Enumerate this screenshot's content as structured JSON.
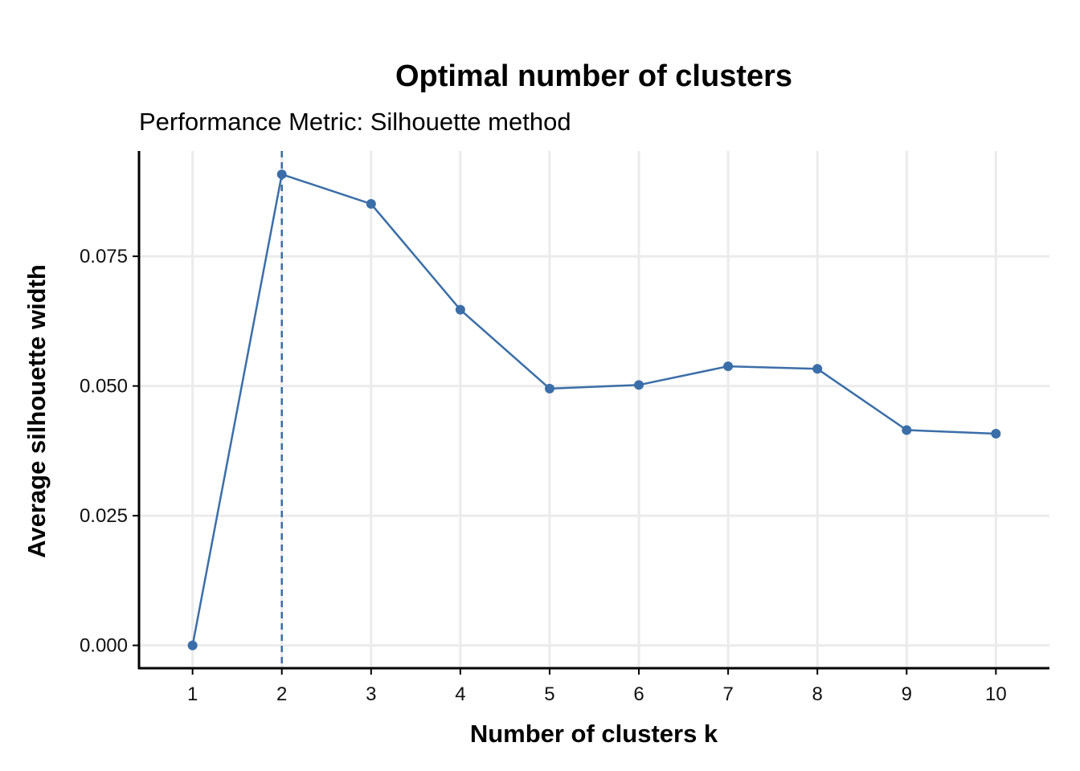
{
  "chart_data": {
    "type": "line",
    "title": "Optimal number of clusters",
    "subtitle": "Performance Metric: Silhouette method",
    "xlabel": "Number of clusters k",
    "ylabel": "Average silhouette width",
    "x": [
      1,
      2,
      3,
      4,
      5,
      6,
      7,
      8,
      9,
      10
    ],
    "x_tick_labels": [
      "1",
      "2",
      "3",
      "4",
      "5",
      "6",
      "7",
      "8",
      "9",
      "10"
    ],
    "series": [
      {
        "values": [
          0.0,
          0.0908,
          0.0851,
          0.0647,
          0.0495,
          0.0502,
          0.0538,
          0.0533,
          0.0415,
          0.0408
        ]
      }
    ],
    "y_ticks": [
      0.0,
      0.025,
      0.05,
      0.075
    ],
    "y_tick_labels": [
      "0.000",
      "0.025",
      "0.050",
      "0.075"
    ],
    "xlim": [
      0.4,
      10.6
    ],
    "ylim": [
      -0.0044,
      0.0953
    ],
    "optimal_k": 2,
    "grid": true,
    "legend": "none",
    "colors": {
      "series": "#3B6EA8",
      "grid": "#EBEBEB",
      "axis": "#000000"
    }
  }
}
